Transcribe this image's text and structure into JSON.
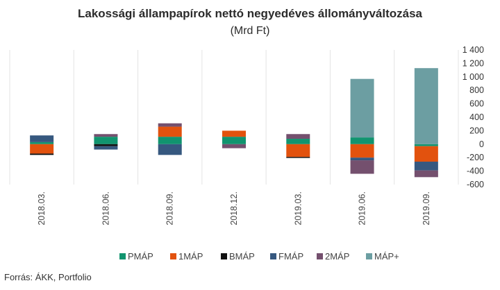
{
  "chart_data": {
    "type": "bar",
    "stacked": true,
    "title": "Lakossági állampapírok nettó negyedéves állományváltozása",
    "subtitle": "(Mrd Ft)",
    "categories": [
      "2018.03.",
      "2018.06.",
      "2018.09.",
      "2018.12.",
      "2019.03.",
      "2019.06.",
      "2019.09."
    ],
    "series": [
      {
        "name": "PMÁP",
        "color": "#11946f",
        "values": [
          30,
          110,
          110,
          110,
          80,
          100,
          -30
        ]
      },
      {
        "name": "1MÁP",
        "color": "#e2520e",
        "values": [
          -140,
          0,
          150,
          90,
          -190,
          -200,
          -230
        ]
      },
      {
        "name": "BMÁP",
        "color": "#111111",
        "values": [
          -20,
          -30,
          0,
          0,
          -15,
          0,
          0
        ]
      },
      {
        "name": "FMÁP",
        "color": "#36587f",
        "values": [
          100,
          -50,
          -160,
          0,
          0,
          -40,
          -130
        ]
      },
      {
        "name": "2MÁP",
        "color": "#74506e",
        "values": [
          0,
          40,
          50,
          -60,
          70,
          -200,
          -100
        ]
      },
      {
        "name": "MÁP+",
        "color": "#6c9ea2",
        "values": [
          0,
          0,
          0,
          0,
          0,
          870,
          1130
        ]
      }
    ],
    "ylim": [
      -600,
      1400
    ],
    "yticks": [
      -600,
      -400,
      -200,
      0,
      200,
      400,
      600,
      800,
      1000,
      1200,
      1400
    ],
    "ytick_labels": [
      "-600",
      "-400",
      "-200",
      "0",
      "200",
      "400",
      "600",
      "800",
      "1 000",
      "1 200",
      "1 400"
    ],
    "grid": "vertical",
    "legend": "bottom",
    "source": "Forrás: ÁKK, Portfolio"
  }
}
